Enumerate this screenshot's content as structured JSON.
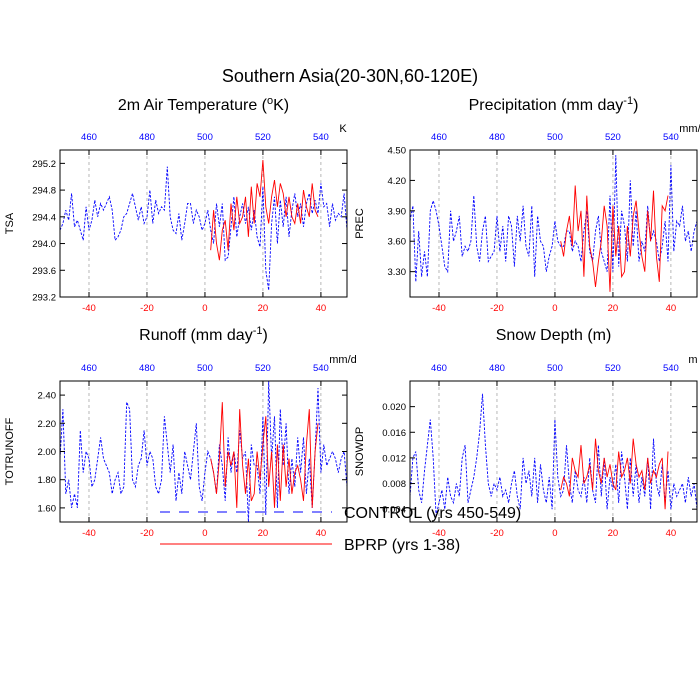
{
  "title": "Southern Asia(20-30N,60-120E)",
  "legend": {
    "entries": [
      {
        "label": "CONTROL (yrs 450-549)",
        "color": "#0000ff",
        "dash": "dashed"
      },
      {
        "label": "BPRP (yrs 1-38)",
        "color": "#ff0000",
        "dash": "solid"
      }
    ]
  },
  "colors": {
    "control": "#0000ff",
    "bprp": "#ff0000",
    "axis": "#000000",
    "grid": "#999999"
  },
  "chart_data": [
    {
      "type": "line",
      "title": "2m Air Temperature (",
      "title_sup": "o",
      "title_post": "K)",
      "ylabel": "TSA",
      "units": "K",
      "xlim": [
        -50,
        49
      ],
      "ylim": [
        293.2,
        295.4
      ],
      "yticks": [
        293.2,
        293.6,
        294.0,
        294.4,
        294.8,
        295.2
      ],
      "ytick_labels": [
        "293.2",
        "293.6",
        "294.0",
        "294.4",
        "294.8",
        "295.2"
      ],
      "xticks_bottom": [
        -40,
        -20,
        0,
        20,
        40
      ],
      "xticks_bottom_labels": [
        "-40",
        "-20",
        "0",
        "20",
        "40"
      ],
      "xticks_top": [
        -40,
        -20,
        0,
        20,
        40
      ],
      "xticks_top_labels": [
        "460",
        "480",
        "500",
        "520",
        "540"
      ],
      "series": [
        {
          "name": "CONTROL",
          "x_start": -50,
          "x_step": 1,
          "values": [
            294.2,
            294.3,
            294.5,
            294.35,
            294.75,
            294.25,
            294.35,
            294.2,
            294.05,
            294.55,
            294.2,
            294.35,
            294.65,
            294.4,
            294.6,
            294.5,
            294.6,
            294.7,
            294.5,
            294.05,
            294.1,
            294.2,
            294.4,
            294.45,
            294.6,
            294.75,
            294.55,
            294.35,
            294.55,
            294.3,
            294.4,
            294.8,
            294.3,
            294.65,
            294.45,
            294.55,
            294.5,
            295.15,
            294.4,
            294.2,
            294.15,
            294.45,
            294.05,
            294.3,
            294.6,
            294.6,
            294.3,
            294.5,
            294.4,
            294.2,
            294.3,
            294.5,
            294.2,
            294.0,
            294.6,
            294.25,
            294.6,
            293.75,
            293.8,
            294.25,
            294.7,
            294.1,
            294.4,
            294.6,
            294.3,
            294.55,
            294.2,
            294.5,
            294.1,
            293.95,
            294.85,
            293.6,
            293.3,
            294.3,
            294.7,
            294.0,
            294.65,
            294.25,
            294.7,
            294.1,
            294.5,
            294.75,
            294.4,
            294.6,
            294.25,
            294.6,
            294.75,
            294.45,
            294.65,
            294.45,
            294.9,
            294.55,
            294.6,
            294.25,
            294.6,
            294.35,
            294.45,
            294.4,
            294.75,
            294.2
          ]
        },
        {
          "name": "BPRP",
          "x_start": 2,
          "x_step": 1,
          "values": [
            293.9,
            294.5,
            294.0,
            293.75,
            294.2,
            294.35,
            293.9,
            294.6,
            294.2,
            294.7,
            294.3,
            294.4,
            294.7,
            294.1,
            294.85,
            294.3,
            294.9,
            294.7,
            295.25,
            294.55,
            294.3,
            294.7,
            294.95,
            294.55,
            294.9,
            294.75,
            294.4,
            294.7,
            294.4,
            294.3,
            294.6,
            294.3,
            294.8,
            294.55,
            294.4,
            294.9,
            294.5,
            294.4
          ]
        }
      ]
    },
    {
      "type": "line",
      "title": "Precipitation (mm day",
      "title_sup": "-1",
      "title_post": ")",
      "ylabel": "PREC",
      "units": "mm/d",
      "xlim": [
        -50,
        49
      ],
      "ylim": [
        3.05,
        4.5
      ],
      "yticks": [
        3.3,
        3.6,
        3.9,
        4.2,
        4.5
      ],
      "ytick_labels": [
        "3.30",
        "3.60",
        "3.90",
        "4.20",
        "4.50"
      ],
      "xticks_bottom": [
        -40,
        -20,
        0,
        20,
        40
      ],
      "xticks_bottom_labels": [
        "-40",
        "-20",
        "0",
        "20",
        "40"
      ],
      "xticks_top": [
        -40,
        -20,
        0,
        20,
        40
      ],
      "xticks_top_labels": [
        "460",
        "480",
        "500",
        "520",
        "540"
      ],
      "series": [
        {
          "name": "CONTROL",
          "x_start": -50,
          "x_step": 1,
          "values": [
            3.8,
            3.95,
            3.2,
            3.7,
            3.25,
            3.5,
            3.25,
            3.9,
            4.0,
            3.9,
            3.75,
            3.55,
            3.35,
            3.3,
            3.9,
            3.6,
            3.7,
            3.85,
            3.45,
            3.55,
            3.5,
            3.6,
            4.05,
            3.55,
            3.4,
            3.7,
            3.85,
            3.4,
            3.45,
            3.5,
            3.85,
            3.5,
            3.75,
            3.4,
            3.85,
            3.75,
            3.35,
            3.85,
            3.6,
            3.95,
            3.55,
            3.45,
            3.95,
            3.25,
            3.85,
            3.6,
            3.55,
            3.3,
            3.45,
            3.55,
            3.8,
            3.6,
            3.55,
            3.55,
            3.7,
            3.7,
            3.5,
            3.6,
            3.55,
            3.4,
            3.7,
            3.9,
            3.5,
            3.4,
            3.7,
            3.85,
            3.5,
            3.4,
            3.3,
            4.05,
            3.3,
            4.45,
            3.35,
            3.9,
            3.75,
            3.4,
            4.2,
            3.55,
            3.9,
            3.4,
            3.6,
            3.5,
            3.95,
            3.6,
            3.7,
            3.6,
            3.4,
            3.55,
            3.8,
            3.4,
            4.35,
            3.5,
            3.8,
            3.75,
            3.95,
            3.6,
            3.7,
            3.5,
            3.7,
            3.8
          ]
        },
        {
          "name": "BPRP",
          "x_start": 2,
          "x_step": 1,
          "values": [
            3.6,
            3.45,
            3.7,
            3.85,
            3.55,
            4.15,
            3.7,
            3.9,
            3.25,
            4.05,
            3.55,
            3.4,
            3.15,
            3.4,
            3.6,
            3.95,
            3.75,
            3.1,
            3.95,
            3.45,
            3.75,
            3.25,
            3.3,
            3.75,
            3.45,
            3.85,
            4.0,
            3.7,
            3.45,
            3.3,
            3.9,
            3.6,
            4.1,
            3.45,
            3.2,
            3.95,
            3.9,
            4.05
          ]
        }
      ]
    },
    {
      "type": "line",
      "title": "Runoff (mm day",
      "title_sup": "-1",
      "title_post": ")",
      "ylabel": "TOTRUNOFF",
      "units": "mm/d",
      "xlim": [
        -50,
        49
      ],
      "ylim": [
        1.5,
        2.5
      ],
      "yticks": [
        1.6,
        1.8,
        2.0,
        2.2,
        2.4
      ],
      "ytick_labels": [
        "1.60",
        "1.80",
        "2.00",
        "2.20",
        "2.40"
      ],
      "xticks_bottom": [
        -40,
        -20,
        0,
        20,
        40
      ],
      "xticks_bottom_labels": [
        "-40",
        "-20",
        "0",
        "20",
        "40"
      ],
      "xticks_top": [
        -40,
        -20,
        0,
        20,
        40
      ],
      "xticks_top_labels": [
        "460",
        "480",
        "500",
        "520",
        "540"
      ],
      "series": [
        {
          "name": "CONTROL",
          "x_start": -50,
          "x_step": 1,
          "values": [
            1.95,
            2.3,
            1.7,
            1.8,
            1.6,
            1.7,
            1.6,
            2.15,
            1.85,
            2.0,
            1.95,
            1.75,
            1.8,
            1.95,
            2.1,
            1.95,
            1.9,
            1.85,
            1.7,
            1.8,
            1.85,
            1.7,
            1.75,
            2.35,
            2.3,
            1.8,
            1.75,
            1.9,
            1.95,
            2.15,
            1.9,
            2.0,
            1.95,
            1.75,
            1.7,
            1.8,
            2.25,
            2.05,
            1.85,
            2.05,
            1.65,
            1.85,
            1.7,
            2.0,
            1.9,
            1.8,
            2.0,
            2.2,
            1.75,
            1.65,
            1.85,
            2.0,
            1.95,
            1.85,
            1.7,
            2.05,
            1.9,
            1.65,
            2.1,
            1.85,
            2.0,
            1.85,
            2.15,
            1.95,
            2.0,
            1.5,
            2.05,
            1.9,
            1.9,
            1.7,
            2.25,
            1.55,
            2.5,
            1.95,
            2.25,
            1.6,
            2.3,
            1.9,
            2.2,
            1.7,
            1.95,
            1.75,
            2.1,
            1.85,
            2.1,
            1.7,
            1.95,
            1.6,
            2.0,
            2.45,
            1.85,
            2.05,
            1.9,
            1.95,
            2.0,
            1.95,
            1.85,
            1.95,
            2.0,
            1.75
          ]
        },
        {
          "name": "BPRP",
          "x_start": 2,
          "x_step": 1,
          "values": [
            1.95,
            1.85,
            1.7,
            1.95,
            2.35,
            1.75,
            2.0,
            1.9,
            2.0,
            1.6,
            2.3,
            1.9,
            1.7,
            1.95,
            1.65,
            1.7,
            2.0,
            1.8,
            2.05,
            2.25,
            1.75,
            2.0,
            1.6,
            2.05,
            1.65,
            2.05,
            1.75,
            1.95,
            1.7,
            1.85,
            1.9,
            1.8,
            1.65,
            2.05,
            2.3,
            1.6,
            2.0,
            2.2
          ]
        }
      ]
    },
    {
      "type": "line",
      "title": "Snow Depth (m)",
      "title_sup": "",
      "title_post": "",
      "ylabel": "SNOWDP",
      "units": "m",
      "xlim": [
        -50,
        49
      ],
      "ylim": [
        0.002,
        0.024
      ],
      "yticks": [
        0.004,
        0.008,
        0.012,
        0.016,
        0.02
      ],
      "ytick_labels": [
        "0.004",
        "0.008",
        "0.012",
        "0.016",
        "0.020"
      ],
      "xticks_bottom": [
        -40,
        -20,
        0,
        20,
        40
      ],
      "xticks_bottom_labels": [
        "-40",
        "-20",
        "0",
        "20",
        "40"
      ],
      "xticks_top": [
        -40,
        -20,
        0,
        20,
        40
      ],
      "xticks_top_labels": [
        "460",
        "480",
        "500",
        "520",
        "540"
      ],
      "series": [
        {
          "name": "CONTROL",
          "x_start": -50,
          "x_step": 1,
          "values": [
            0.006,
            0.012,
            0.013,
            0.007,
            0.005,
            0.01,
            0.014,
            0.018,
            0.012,
            0.003,
            0.005,
            0.007,
            0.004,
            0.009,
            0.006,
            0.005,
            0.008,
            0.006,
            0.012,
            0.014,
            0.005,
            0.007,
            0.009,
            0.012,
            0.016,
            0.022,
            0.014,
            0.008,
            0.006,
            0.008,
            0.007,
            0.009,
            0.006,
            0.007,
            0.005,
            0.008,
            0.01,
            0.006,
            0.004,
            0.012,
            0.008,
            0.01,
            0.006,
            0.012,
            0.005,
            0.011,
            0.007,
            0.005,
            0.009,
            0.004,
            0.018,
            0.009,
            0.006,
            0.007,
            0.014,
            0.008,
            0.005,
            0.01,
            0.007,
            0.006,
            0.009,
            0.005,
            0.012,
            0.007,
            0.005,
            0.014,
            0.006,
            0.012,
            0.004,
            0.009,
            0.007,
            0.011,
            0.005,
            0.013,
            0.009,
            0.004,
            0.012,
            0.006,
            0.011,
            0.005,
            0.009,
            0.006,
            0.012,
            0.004,
            0.015,
            0.008,
            0.006,
            0.011,
            0.005,
            0.01,
            0.004,
            0.008,
            0.006,
            0.007,
            0.008,
            0.005,
            0.009,
            0.006,
            0.008,
            0.004
          ]
        },
        {
          "name": "BPRP",
          "x_start": 2,
          "x_step": 1,
          "values": [
            0.007,
            0.009,
            0.008,
            0.006,
            0.012,
            0.01,
            0.009,
            0.014,
            0.008,
            0.009,
            0.011,
            0.007,
            0.015,
            0.01,
            0.008,
            0.012,
            0.009,
            0.011,
            0.008,
            0.007,
            0.013,
            0.009,
            0.01,
            0.012,
            0.008,
            0.015,
            0.011,
            0.009,
            0.01,
            0.007,
            0.012,
            0.008,
            0.01,
            0.009,
            0.011,
            0.012,
            0.004,
            0.013
          ]
        }
      ]
    }
  ]
}
